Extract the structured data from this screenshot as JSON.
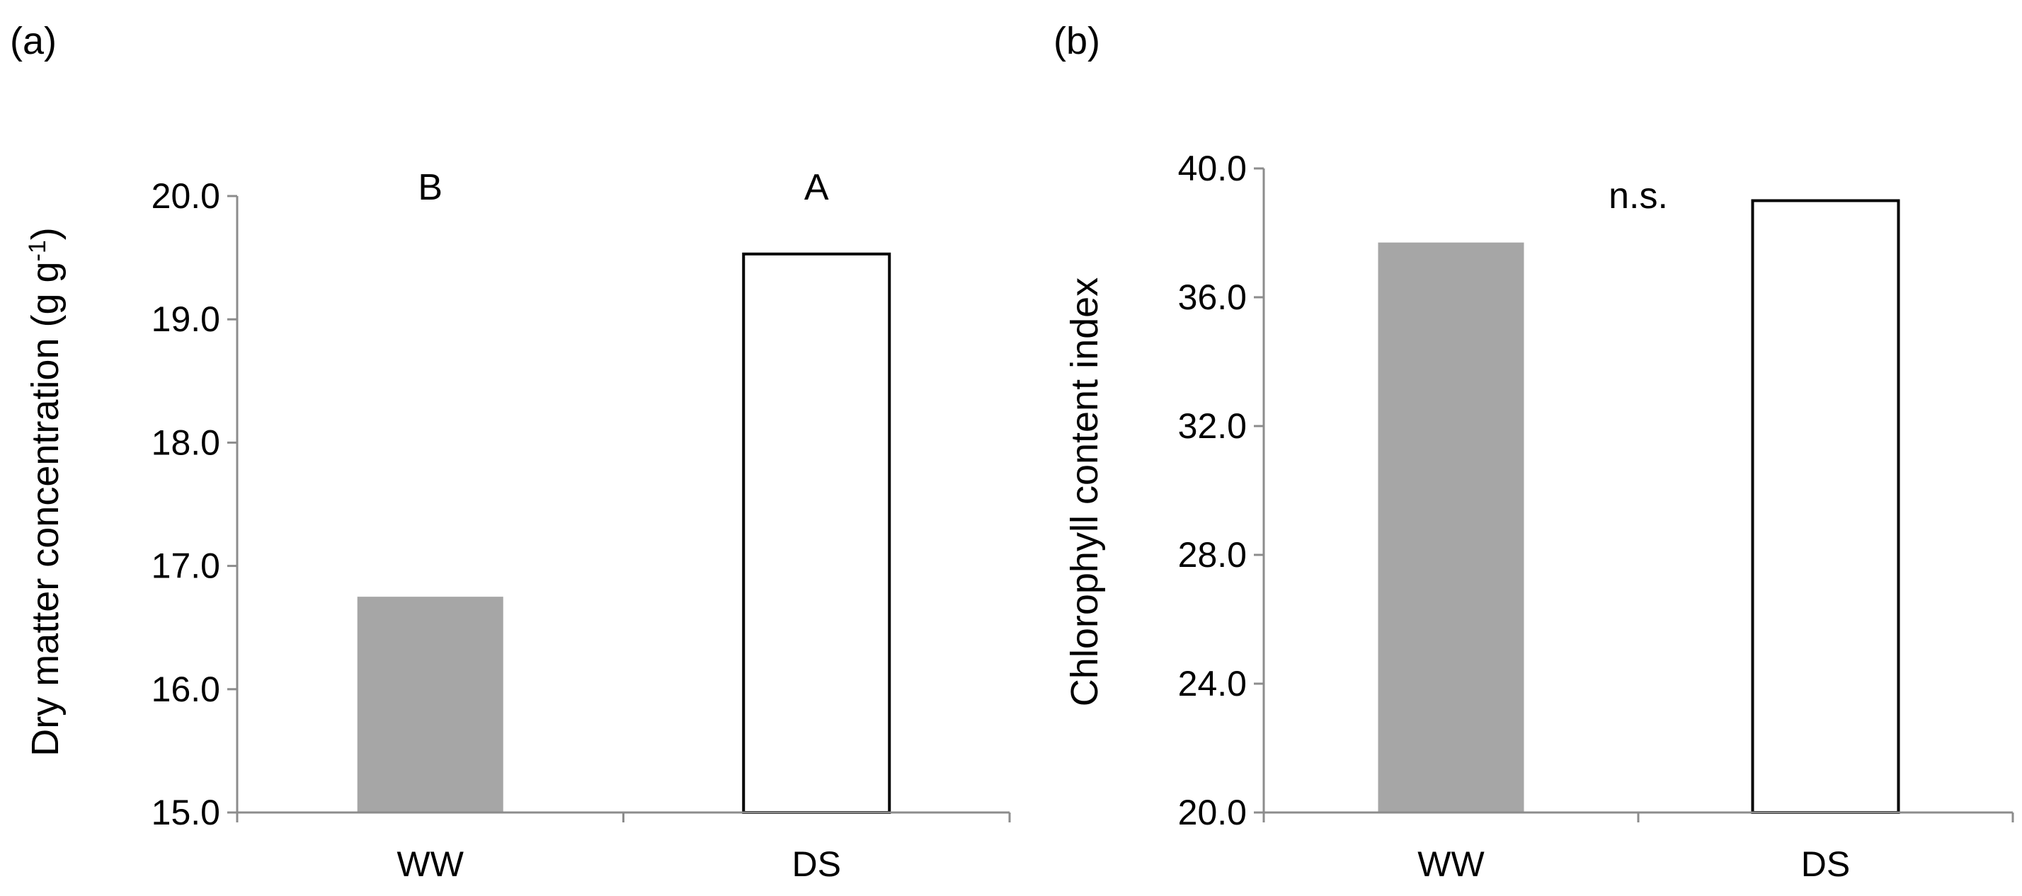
{
  "chart_data": [
    {
      "type": "bar",
      "panel_label": "(a)",
      "categories": [
        "WW",
        "DS"
      ],
      "values": [
        16.75,
        19.53
      ],
      "significance": [
        "B",
        "A"
      ],
      "ylabel": "Dry matter concentration (g g",
      "ylabel_sup": "-1",
      "ylabel_close": ")",
      "ylim": [
        15.0,
        20.0
      ],
      "yticks": [
        "15.0",
        "16.0",
        "17.0",
        "18.0",
        "19.0",
        "20.0"
      ],
      "bar_fills": [
        "#a6a6a6",
        "#ffffff"
      ],
      "grid": false,
      "legend": "none"
    },
    {
      "type": "bar",
      "panel_label": "(b)",
      "categories": [
        "WW",
        "DS"
      ],
      "values": [
        37.7,
        39.0
      ],
      "significance_note": "n.s.",
      "ylabel": "Chlorophyll content index",
      "ylim": [
        20.0,
        40.0
      ],
      "yticks": [
        "20.0",
        "24.0",
        "28.0",
        "32.0",
        "36.0",
        "40.0"
      ],
      "bar_fills": [
        "#a6a6a6",
        "#ffffff"
      ],
      "grid": false,
      "legend": "none"
    }
  ]
}
